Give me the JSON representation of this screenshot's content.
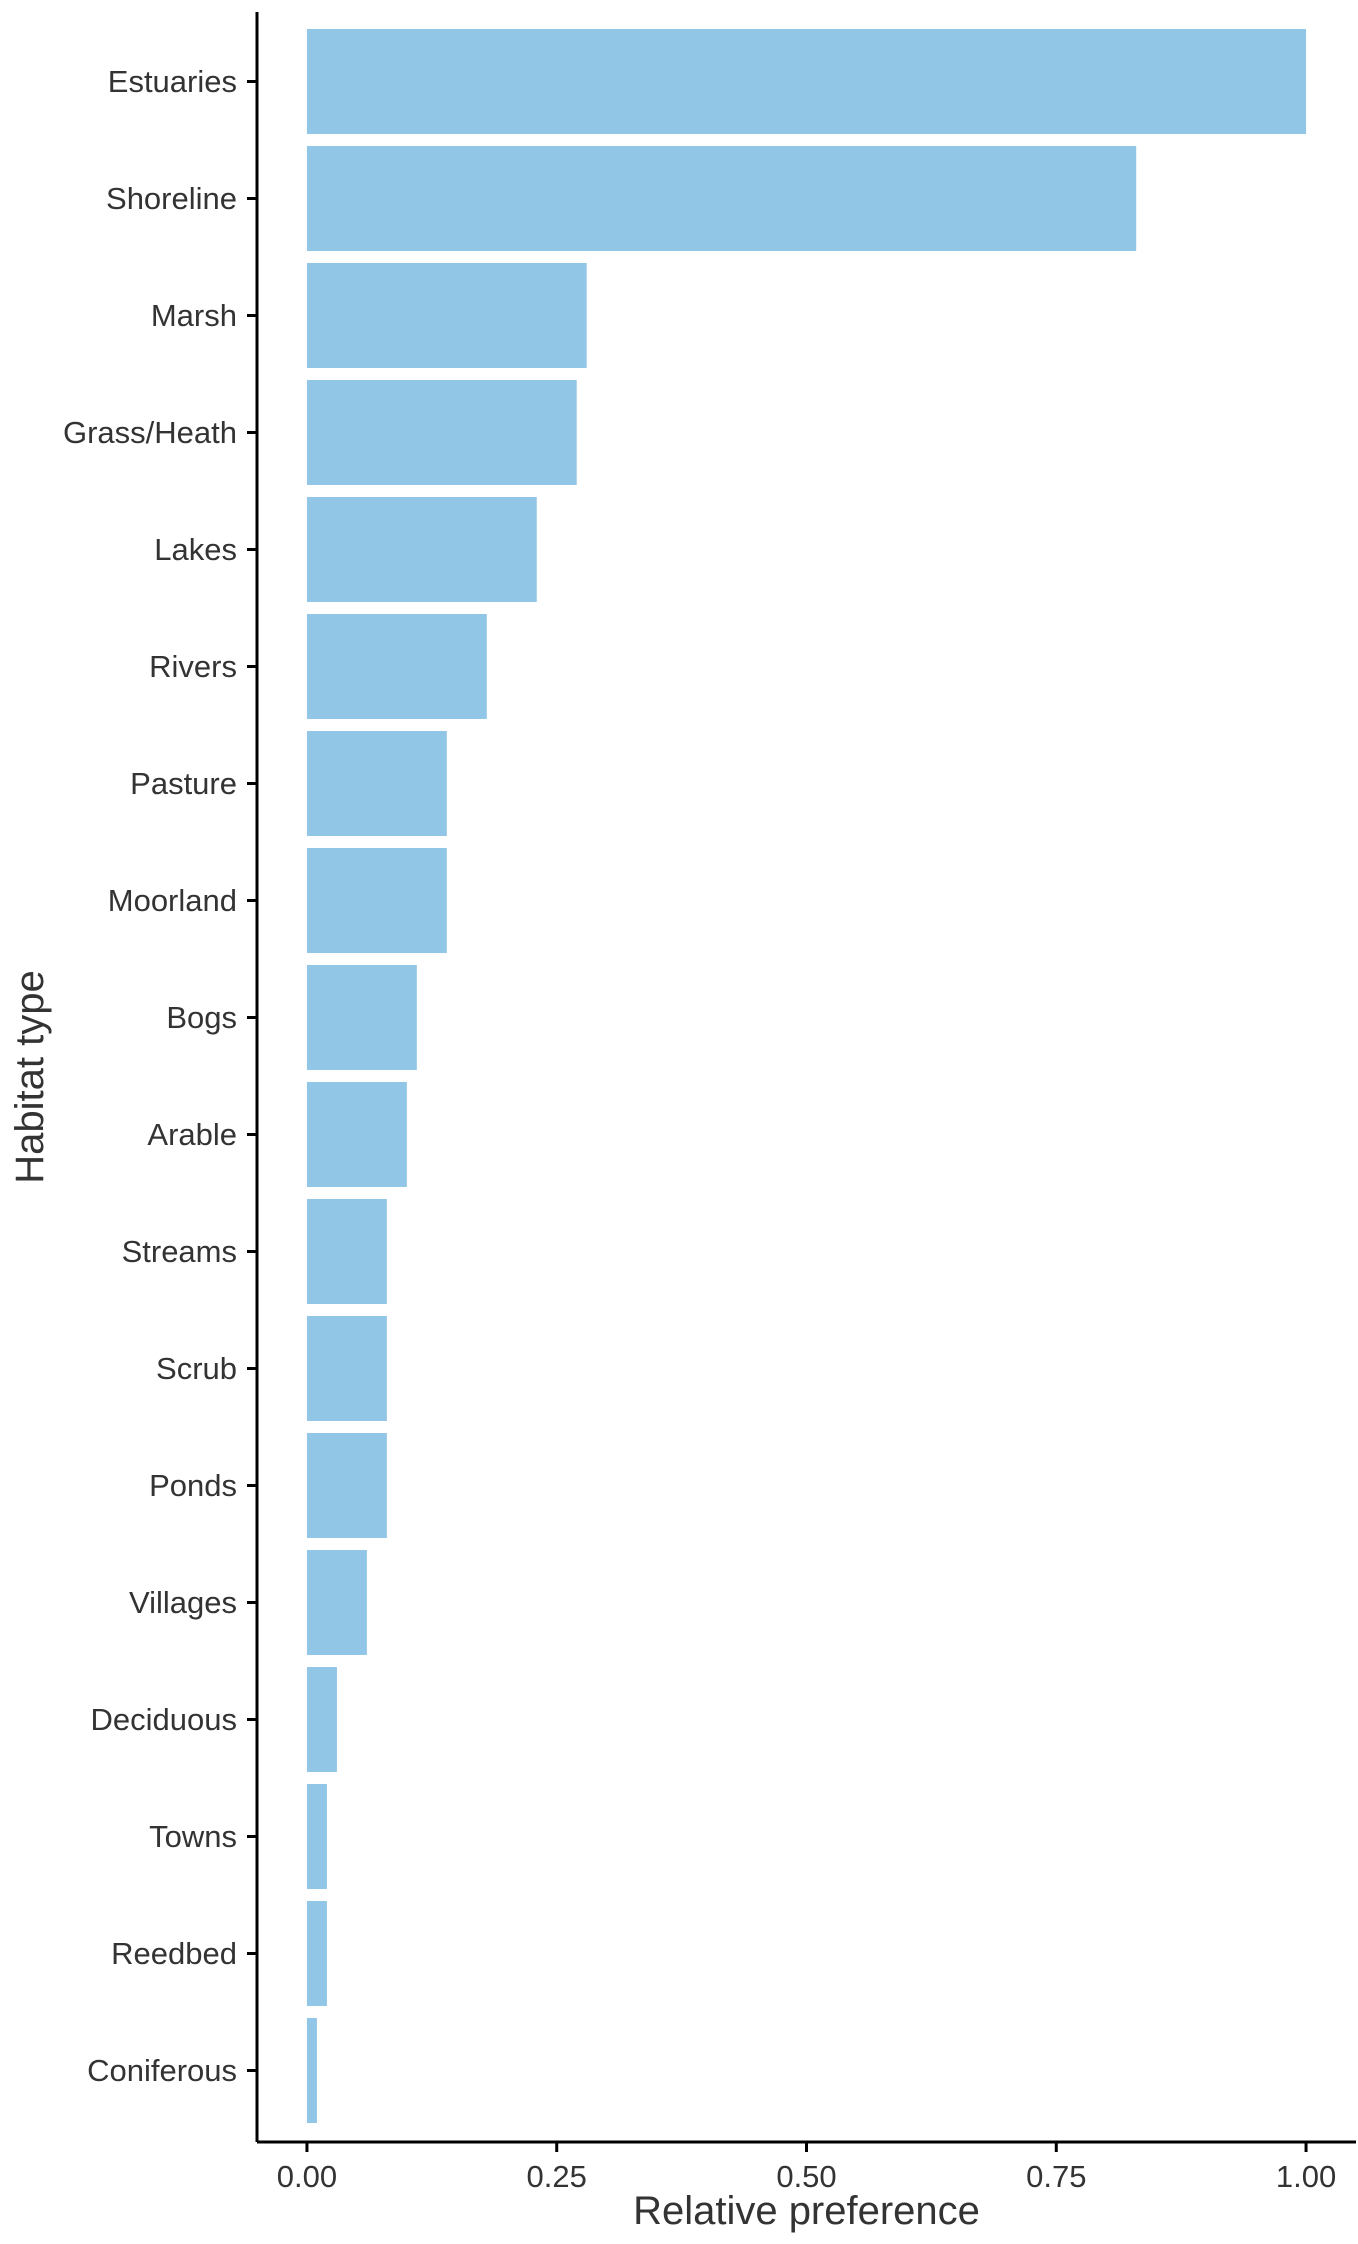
{
  "chart_data": {
    "type": "bar",
    "orientation": "horizontal",
    "xlabel": "Relative preference",
    "ylabel": "Habitat type",
    "xlim": [
      -0.05,
      1.05
    ],
    "x_ticks": [
      "0.00",
      "0.25",
      "0.50",
      "0.75",
      "1.00"
    ],
    "x_tick_values": [
      0,
      0.25,
      0.5,
      0.75,
      1.0
    ],
    "grid": false,
    "legend": "none",
    "bar_color": "#92c6e6",
    "axis_color": "#000000",
    "categories": [
      "Estuaries",
      "Shoreline",
      "Marsh",
      "Grass/Heath",
      "Lakes",
      "Rivers",
      "Pasture",
      "Moorland",
      "Bogs",
      "Arable",
      "Streams",
      "Scrub",
      "Ponds",
      "Villages",
      "Deciduous",
      "Towns",
      "Reedbed",
      "Coniferous"
    ],
    "values": [
      1.0,
      0.83,
      0.28,
      0.27,
      0.23,
      0.18,
      0.14,
      0.14,
      0.11,
      0.1,
      0.08,
      0.08,
      0.08,
      0.06,
      0.03,
      0.02,
      0.02,
      0.01
    ]
  }
}
